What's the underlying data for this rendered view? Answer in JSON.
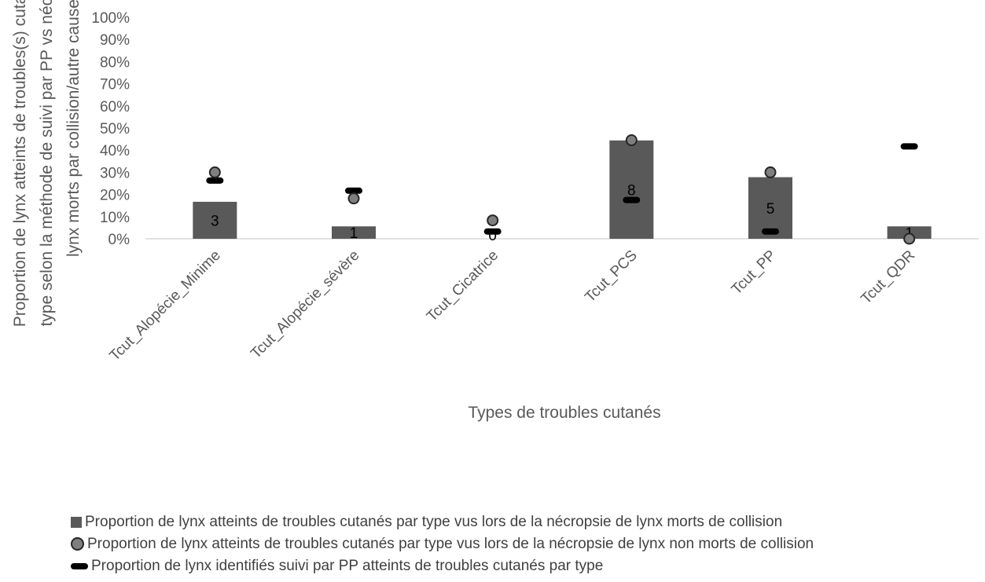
{
  "chart_data": {
    "type": "bar",
    "title": "",
    "xlabel": "Types de troubles cutanés",
    "ylabel_lines": [
      "Proportion de lynx atteints de troubles(s) cutané(s) par",
      "type  selon la méthode de suivi par PP vs nécropsie de",
      "lynx morts par collision/autre cause"
    ],
    "ylim": [
      0,
      100
    ],
    "yticks": [
      "0%",
      "10%",
      "20%",
      "30%",
      "40%",
      "50%",
      "60%",
      "70%",
      "80%",
      "90%",
      "100%"
    ],
    "categories": [
      "Tcut_Alopécie_Minime",
      "Tcut_Alopécie_sévère",
      "Tcut_Cicatrice",
      "Tcut_PCS",
      "Tcut_PP",
      "Tcut_QDR"
    ],
    "series": [
      {
        "name": "Proportion de lynx atteints de troubles cutanés par type vus lors de la nécropsie de lynx morts de collision",
        "kind": "bar",
        "color": "#595959",
        "values": [
          16.7,
          5.6,
          0,
          44.4,
          27.8,
          5.6
        ],
        "labels": [
          "3",
          "1",
          "0",
          "8",
          "5",
          "1"
        ]
      },
      {
        "name": "Proportion de lynx atteints de troubles cutanés par type vus lors de la nécropsie de lynx non morts de collision",
        "kind": "marker-circle",
        "color": "#7f7f7f",
        "values": [
          30,
          18.2,
          8.3,
          44.5,
          30,
          0
        ]
      },
      {
        "name": "Proportion de lynx identifiés suivi par PP atteints de troubles cutanés par type",
        "kind": "marker-dash",
        "color": "#000000",
        "values": [
          26.3,
          21.7,
          3.3,
          17.5,
          3.3,
          41.7
        ]
      }
    ],
    "legend_position": "bottom",
    "grid": false
  }
}
